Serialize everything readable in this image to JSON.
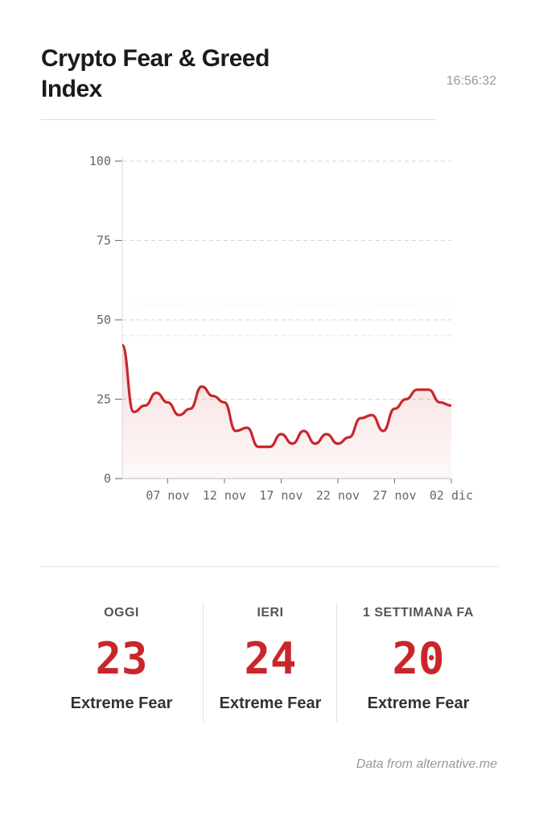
{
  "header": {
    "title": "Crypto Fear & Greed Index",
    "time": "16:56:32"
  },
  "colors": {
    "line": "#c9262b",
    "value": "#c9262b"
  },
  "chart_data": {
    "type": "line",
    "title": "",
    "xlabel": "",
    "ylabel": "",
    "ylim": [
      0,
      100
    ],
    "yticks": [
      "0",
      "25",
      "50",
      "75",
      "100"
    ],
    "xtick_labels": [
      "07 nov",
      "12 nov",
      "17 nov",
      "22 nov",
      "27 nov",
      "02 dic"
    ],
    "xtick_indices": [
      4,
      9,
      14,
      19,
      24,
      29
    ],
    "values": [
      42,
      21,
      23,
      27,
      24,
      20,
      22,
      29,
      26,
      24,
      15,
      16,
      10,
      10,
      14,
      11,
      15,
      11,
      14,
      11,
      13,
      19,
      20,
      15,
      22,
      25,
      28,
      28,
      24,
      23
    ],
    "reference_lines": [
      55,
      45
    ]
  },
  "stats": [
    {
      "label": "OGGI",
      "value": "23",
      "class": "Extreme Fear"
    },
    {
      "label": "IERI",
      "value": "24",
      "class": "Extreme Fear"
    },
    {
      "label": "1 SETTIMANA FA",
      "value": "20",
      "class": "Extreme Fear"
    }
  ],
  "footer": {
    "source": "Data from alternative.me"
  }
}
